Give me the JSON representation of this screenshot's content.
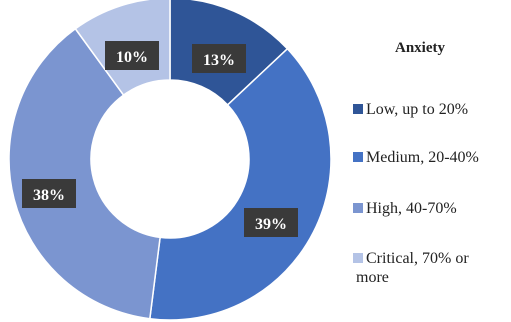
{
  "chart_data": {
    "type": "pie",
    "variant": "donut",
    "title": "Anxiety",
    "categories": [
      "Low, up to 20%",
      "Medium, 20-40%",
      "High, 40-70%",
      "Critical, 70% or more"
    ],
    "values": [
      13,
      39,
      38,
      10
    ],
    "labels": [
      "13%",
      "39%",
      "38%",
      "10%"
    ],
    "colors": [
      "#2f5597",
      "#4472c4",
      "#7b95d0",
      "#b4c3e6"
    ],
    "legend_position": "right",
    "legend_lines": [
      [
        "Low, up to 20%"
      ],
      [
        "Medium, 20-40%"
      ],
      [
        "High, 40-70%"
      ],
      [
        "Critical, 70% or",
        "more"
      ]
    ]
  }
}
